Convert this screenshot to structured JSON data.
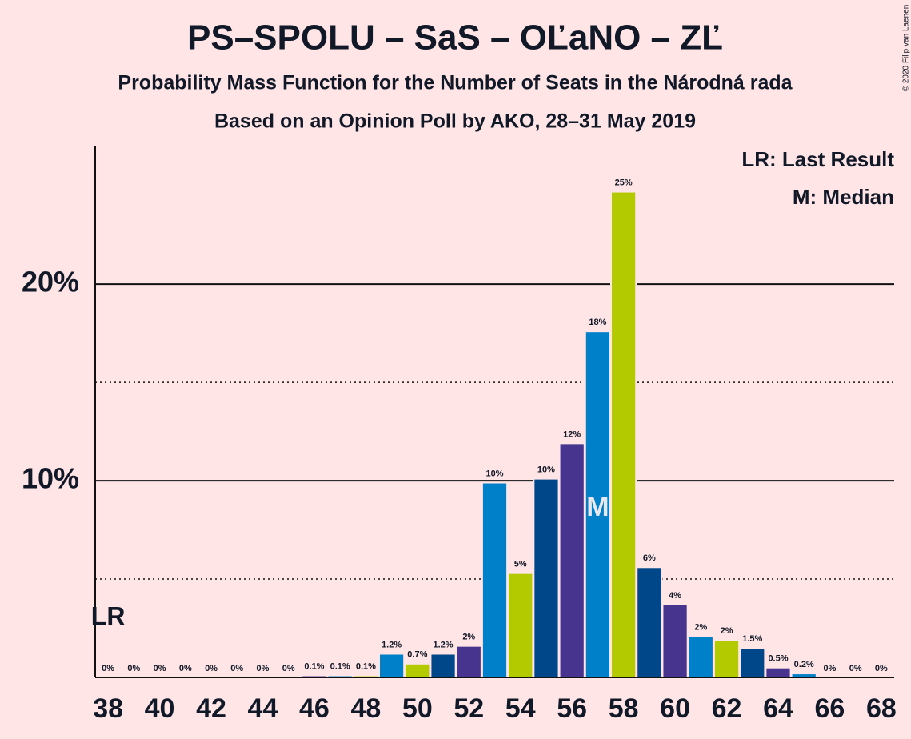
{
  "chart_data": {
    "type": "bar",
    "title": "PS–SPOLU – SaS – OĽaNO – ZĽ",
    "subtitle": "Probability Mass Function for the Number of Seats in the Národná rada",
    "subtitle2": "Based on an Opinion Poll by AKO, 28–31 May 2019",
    "copyright": "© 2020 Filip van Laenen",
    "x": [
      38,
      39,
      40,
      41,
      42,
      43,
      44,
      45,
      46,
      47,
      48,
      49,
      50,
      51,
      52,
      53,
      54,
      55,
      56,
      57,
      58,
      59,
      60,
      61,
      62,
      63,
      64,
      65,
      66,
      67,
      68
    ],
    "values": [
      0,
      0,
      0,
      0,
      0,
      0,
      0,
      0,
      0.1,
      0.1,
      0.1,
      1.2,
      0.7,
      1.2,
      1.6,
      9.9,
      5.3,
      10.1,
      11.9,
      17.6,
      24.7,
      5.6,
      3.7,
      2.1,
      1.9,
      1.5,
      0.5,
      0.2,
      0,
      0,
      0
    ],
    "value_labels": [
      "0%",
      "0%",
      "0%",
      "0%",
      "0%",
      "0%",
      "0%",
      "0%",
      "0.1%",
      "0.1%",
      "0.1%",
      "1.2%",
      "0.7%",
      "1.2%",
      "2%",
      "10%",
      "5%",
      "10%",
      "12%",
      "18%",
      "25%",
      "6%",
      "4%",
      "2%",
      "2%",
      "1.5%",
      "0.5%",
      "0.2%",
      "0%",
      "0%",
      "0%"
    ],
    "colors": [
      "#46348f",
      "#0080c8",
      "#b3c900",
      "#00478a",
      "#46348f",
      "#0080c8",
      "#b3c900",
      "#00478a",
      "#46348f",
      "#0080c8",
      "#b3c900",
      "#0080c8",
      "#b3c900",
      "#00478a",
      "#46348f",
      "#0080c8",
      "#b3c900",
      "#00478a",
      "#46348f",
      "#0080c8",
      "#b3c900",
      "#00478a",
      "#46348f",
      "#0080c8",
      "#b3c900",
      "#00478a",
      "#46348f",
      "#0080c8",
      "#b3c900",
      "#00478a",
      "#46348f"
    ],
    "xlim": [
      37.5,
      68.5
    ],
    "xticks": [
      38,
      40,
      42,
      44,
      46,
      48,
      50,
      52,
      54,
      56,
      58,
      60,
      62,
      64,
      66,
      68
    ],
    "ylim": [
      0,
      27
    ],
    "yticks": [
      {
        "value": 10,
        "label": "10%"
      },
      {
        "value": 20,
        "label": "20%"
      }
    ],
    "minor_yticks": [
      5,
      15
    ],
    "last_result": 38,
    "last_result_label": "LR",
    "last_result_legend": "LR: Last Result",
    "median": 57,
    "median_label": "M",
    "median_legend": "M: Median"
  }
}
